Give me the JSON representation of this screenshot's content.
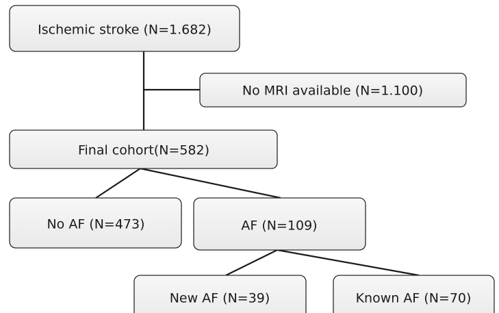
{
  "nodes": [
    {
      "label": "Ischemic stroke (N=1.682)"
    },
    {
      "label": "No MRI available (N=1.100)"
    },
    {
      "label": "Final cohort(N=582)"
    },
    {
      "label": "No AF (N=473)"
    },
    {
      "label": "AF (N=109)"
    },
    {
      "label": "New AF (N=39)"
    },
    {
      "label": "Known AF (N=70)"
    }
  ]
}
